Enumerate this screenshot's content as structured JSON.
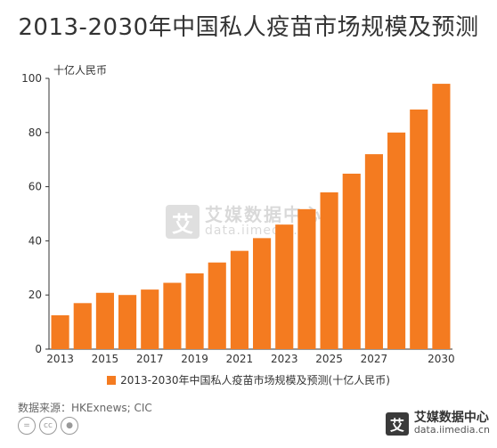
{
  "title": "2013-2030年中国私人疫苗市场规模及预测",
  "unit_label": "十亿人民币",
  "legend_label": "2013-2030年中国私人疫苗市场规模及预测(十亿人民币)",
  "source": "数据来源：HKExnews; CIC",
  "brand": {
    "name": "艾媒数据中心",
    "url": "data.iimedia.cn"
  },
  "watermark": {
    "name": "艾媒数据中心",
    "url": "data.iimedia.cn"
  },
  "colors": {
    "bar": "#f47b20",
    "axis": "#333333"
  },
  "chart_data": {
    "type": "bar",
    "categories": [
      "2013",
      "2014",
      "2015",
      "2016",
      "2017",
      "2018",
      "2019",
      "2020",
      "2021",
      "2022",
      "2023",
      "2024",
      "2025",
      "2026",
      "2027",
      "2028",
      "2029",
      "2030"
    ],
    "x_tick_labels": [
      "2013",
      "",
      "2015",
      "",
      "2017",
      "",
      "2019",
      "",
      "2021",
      "",
      "2023",
      "",
      "2025",
      "",
      "2027",
      "",
      "",
      "2030"
    ],
    "series": [
      {
        "name": "2013-2030年中国私人疫苗市场规模及预测(十亿人民币)",
        "values": [
          12.5,
          17,
          20.8,
          20,
          22,
          24.5,
          28,
          32,
          36.3,
          41,
          46,
          51.7,
          57.9,
          64.8,
          72,
          80,
          88.5,
          98
        ]
      }
    ],
    "yticks": [
      0,
      20,
      40,
      60,
      80,
      100
    ],
    "ylim": [
      0,
      100
    ],
    "grid": false,
    "legend_position": "bottom"
  }
}
